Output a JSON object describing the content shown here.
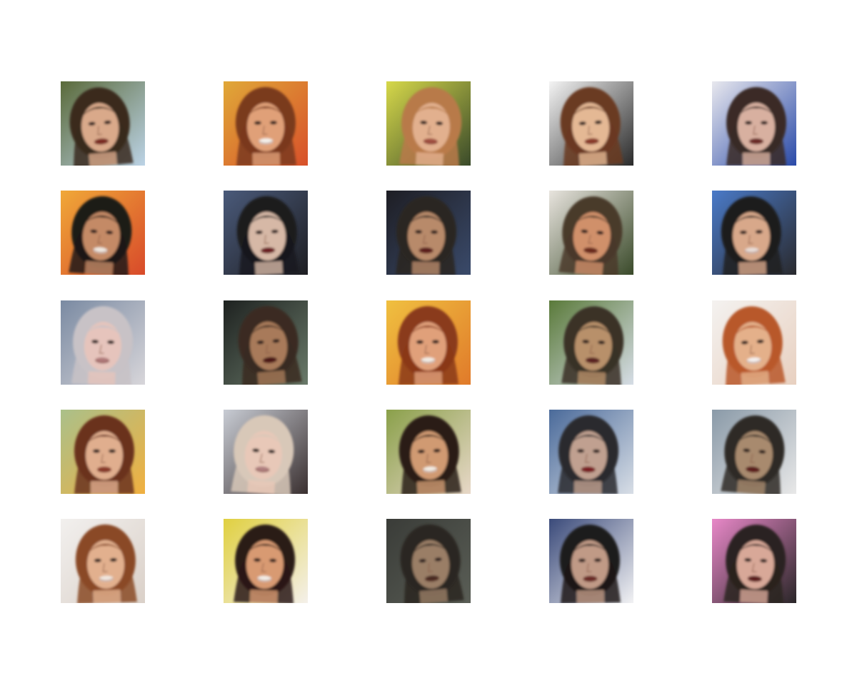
{
  "figure": {
    "rows": 5,
    "columns": 5,
    "samples": [
      {
        "bg": "#5a6a3a",
        "bg2": "#bcd3e6",
        "hair": "#3a2a1e",
        "skin": "#d9a98a",
        "mouth": "#7a2a22"
      },
      {
        "bg": "#e0a838",
        "bg2": "#d8502a",
        "hair": "#7a3a1e",
        "skin": "#e0a078",
        "mouth": "#f4f0ea"
      },
      {
        "bg": "#d6d84a",
        "bg2": "#3a4a2a",
        "hair": "#b87a4a",
        "skin": "#e2b08e",
        "mouth": "#a05040"
      },
      {
        "bg": "#f4f4f4",
        "bg2": "#2a2a2a",
        "hair": "#6a3a22",
        "skin": "#e4b894",
        "mouth": "#8a3a2a"
      },
      {
        "bg": "#e8e8ee",
        "bg2": "#2a4aa8",
        "hair": "#3a2a26",
        "skin": "#d8b0a0",
        "mouth": "#6a2a26"
      },
      {
        "bg": "#f0a838",
        "bg2": "#d84a2a",
        "hair": "#1e1a18",
        "skin": "#c48a66",
        "mouth": "#f0e8e0"
      },
      {
        "bg": "#4a5a7a",
        "bg2": "#1e1e22",
        "hair": "#1a1a1e",
        "skin": "#d6b8a6",
        "mouth": "#6a1e22"
      },
      {
        "bg": "#1e1e24",
        "bg2": "#3a4a6a",
        "hair": "#2a2622",
        "skin": "#b88a6a",
        "mouth": "#5a1a1a"
      },
      {
        "bg": "#e8e4de",
        "bg2": "#3a4a2a",
        "hair": "#4a3a2a",
        "skin": "#d0906a",
        "mouth": "#6a2a1e"
      },
      {
        "bg": "#4a7ac8",
        "bg2": "#2a2a2e",
        "hair": "#1e1c1e",
        "skin": "#d8a88a",
        "mouth": "#e8dcd6"
      },
      {
        "bg": "#7a8aa2",
        "bg2": "#d8d6da",
        "hair": "#c8c2c6",
        "skin": "#e6c4bc",
        "mouth": "#b07a7a"
      },
      {
        "bg": "#1e2220",
        "bg2": "#6a7a6a",
        "hair": "#3a2a22",
        "skin": "#a87a5a",
        "mouth": "#4a1618"
      },
      {
        "bg": "#f0c040",
        "bg2": "#e07a2a",
        "hair": "#8a3a1a",
        "skin": "#e0a07a",
        "mouth": "#f2ece4"
      },
      {
        "bg": "#5a7a3a",
        "bg2": "#d6dde6",
        "hair": "#3a3026",
        "skin": "#b8906a",
        "mouth": "#5a2422"
      },
      {
        "bg": "#f4f2f0",
        "bg2": "#e8d0c0",
        "hair": "#b8582a",
        "skin": "#e4b08a",
        "mouth": "#f4f0ee"
      },
      {
        "bg": "#aac08a",
        "bg2": "#f0b040",
        "hair": "#6a321e",
        "skin": "#e0ae8e",
        "mouth": "#8a3a2a"
      },
      {
        "bg": "#c8ccd4",
        "bg2": "#3a3030",
        "hair": "#d8c8b8",
        "skin": "#e8c8b8",
        "mouth": "#b08080"
      },
      {
        "bg": "#8aa04a",
        "bg2": "#e8d8c8",
        "hair": "#2a1e18",
        "skin": "#d09a72",
        "mouth": "#f2ebe2"
      },
      {
        "bg": "#4a6a9a",
        "bg2": "#d8dee6",
        "hair": "#2a2a2e",
        "skin": "#c0a090",
        "mouth": "#7a1e22"
      },
      {
        "bg": "#8a9aa8",
        "bg2": "#e8e8e8",
        "hair": "#2e2a26",
        "skin": "#a88a6e",
        "mouth": "#5a1a1a"
      },
      {
        "bg": "#f2f0ee",
        "bg2": "#dad0c8",
        "hair": "#8a4a26",
        "skin": "#e2b08e",
        "mouth": "#f0e6de"
      },
      {
        "bg": "#e0d040",
        "bg2": "#f4f0ea",
        "hair": "#2a1a18",
        "skin": "#d89a72",
        "mouth": "#f2ece6"
      },
      {
        "bg": "#3a3c38",
        "bg2": "#5a5e56",
        "hair": "#2a2622",
        "skin": "#9a7e66",
        "mouth": "#4a2a22"
      },
      {
        "bg": "#3a4a7a",
        "bg2": "#f2f2f4",
        "hair": "#1e1a1a",
        "skin": "#c09a86",
        "mouth": "#6a2a26"
      },
      {
        "bg": "#e888c8",
        "bg2": "#2a2628",
        "hair": "#2a2420",
        "skin": "#d8a898",
        "mouth": "#5a1a1a"
      }
    ]
  }
}
